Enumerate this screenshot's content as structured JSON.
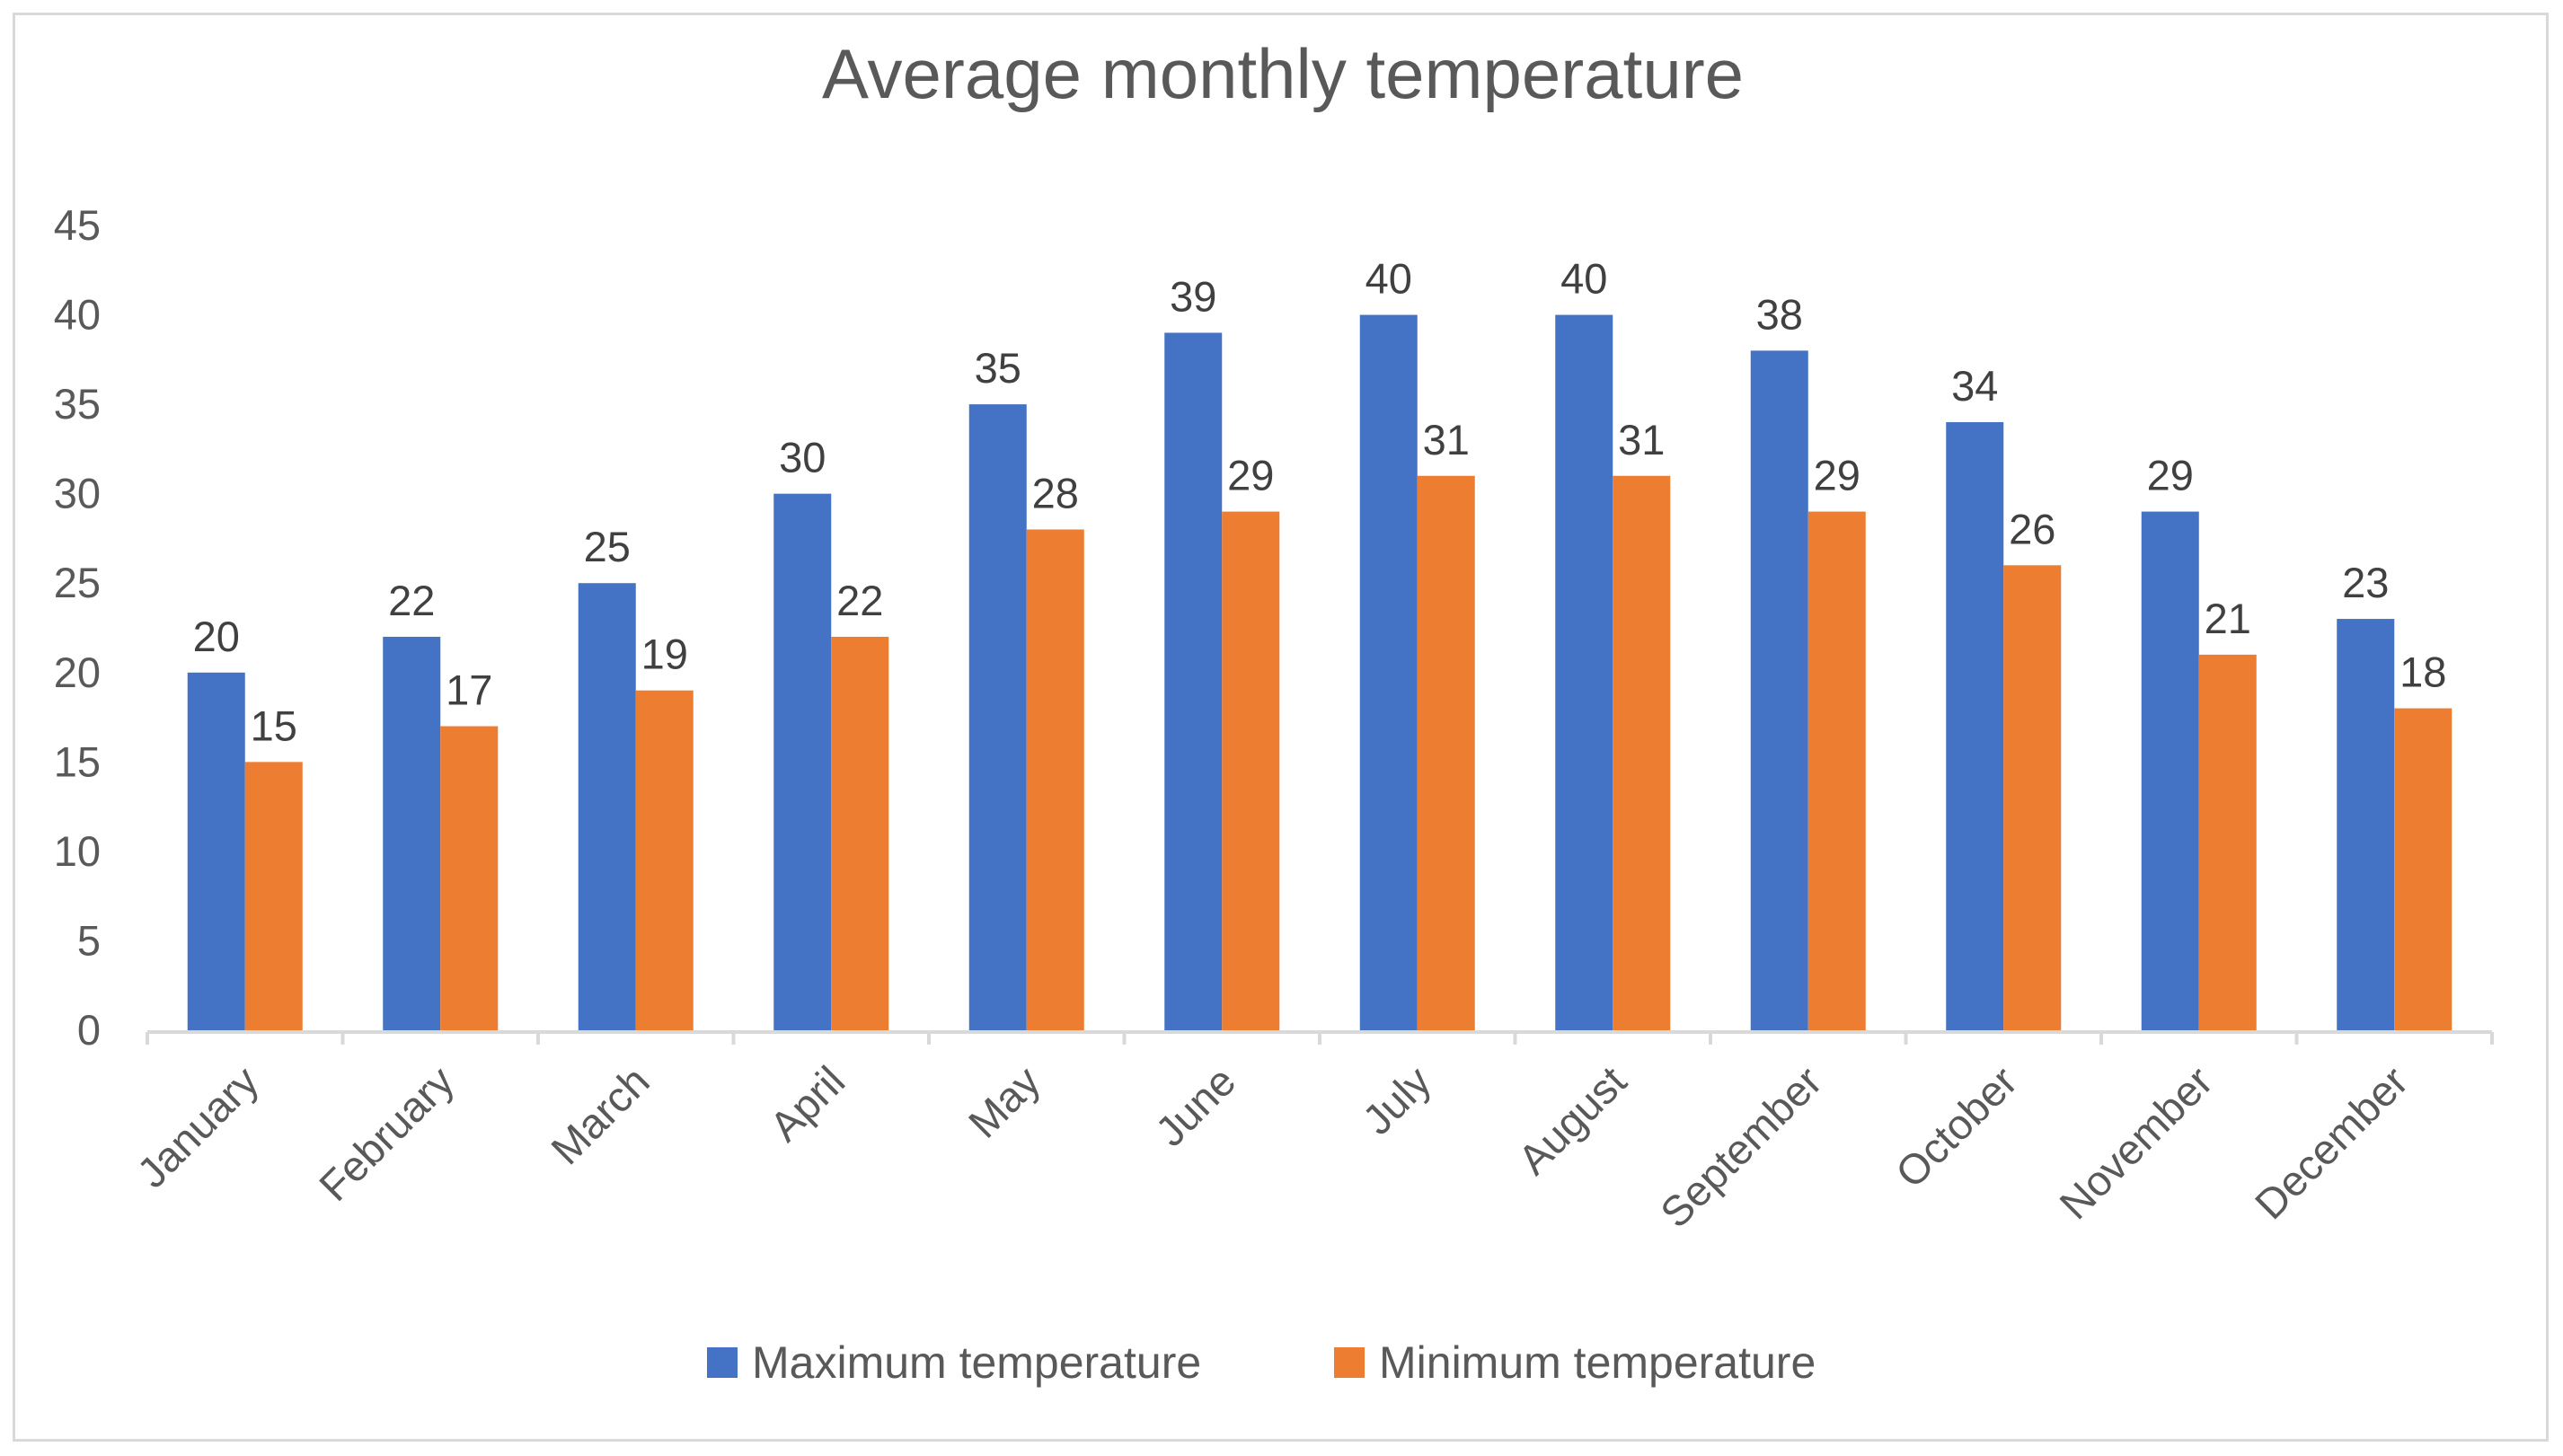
{
  "chart_data": {
    "type": "bar",
    "title": "Average monthly temperature",
    "xlabel": "",
    "ylabel": "",
    "ylim": [
      0,
      45
    ],
    "yticks": [
      0,
      5,
      10,
      15,
      20,
      25,
      30,
      35,
      40,
      45
    ],
    "grid": false,
    "legend_position": "bottom",
    "categories": [
      "January",
      "February",
      "March",
      "April",
      "May",
      "June",
      "July",
      "August",
      "September",
      "October",
      "November",
      "December"
    ],
    "series": [
      {
        "name": "Maximum temperature",
        "color": "#4472C4",
        "values": [
          20,
          22,
          25,
          30,
          35,
          39,
          40,
          40,
          38,
          34,
          29,
          23
        ]
      },
      {
        "name": "Minimum temperature",
        "color": "#ED7D31",
        "values": [
          15,
          17,
          19,
          22,
          28,
          29,
          31,
          31,
          29,
          26,
          21,
          18
        ]
      }
    ],
    "axis_color": "#d9d9d9",
    "frame_color": "#d9d9d9"
  }
}
